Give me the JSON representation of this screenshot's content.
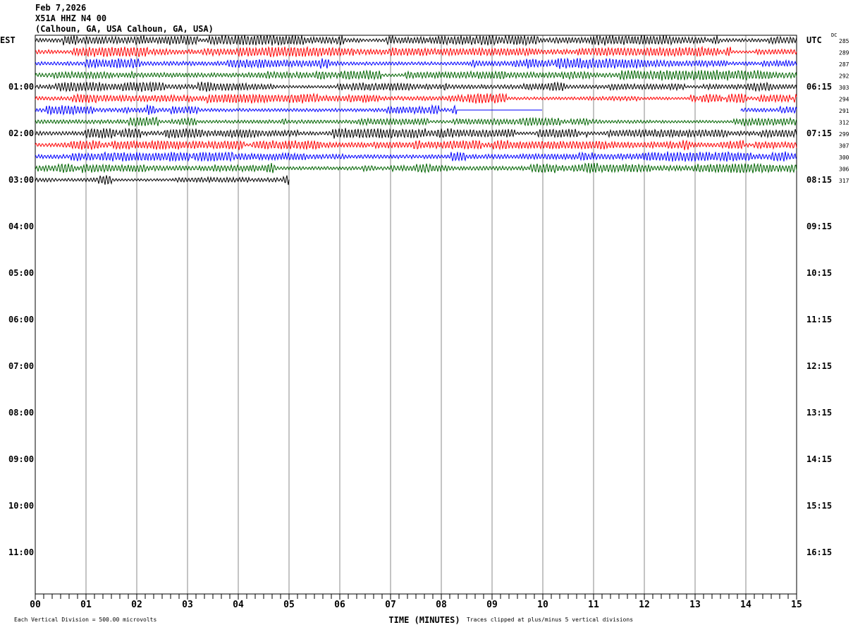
{
  "header": {
    "date": "Feb 7,2026",
    "station": "X51A HHZ N4 00",
    "location": "(Calhoun, GA, USA Calhoun, GA, USA)"
  },
  "chart_data": {
    "type": "line",
    "subtype": "helicorder",
    "left_zone_label": "EST",
    "right_zone_label": "UTC",
    "dc_label": "DC",
    "left_hour_labels": [
      "01:00",
      "02:00",
      "03:00",
      "04:00",
      "05:00",
      "06:00",
      "07:00",
      "08:00",
      "09:00",
      "10:00",
      "11:00"
    ],
    "right_hour_labels": [
      "06:15",
      "07:15",
      "08:15",
      "09:15",
      "10:15",
      "11:15",
      "12:15",
      "13:15",
      "14:15",
      "15:15",
      "16:15"
    ],
    "xlabel": "TIME (MINUTES)",
    "x_tick_labels": [
      "00",
      "01",
      "02",
      "03",
      "04",
      "05",
      "06",
      "07",
      "08",
      "09",
      "10",
      "11",
      "12",
      "13",
      "14",
      "15"
    ],
    "xlim": [
      0,
      15
    ],
    "rows_per_hour": 4,
    "hours_shown": 12,
    "trace_colors": [
      "#000000",
      "#ff0000",
      "#0000ff",
      "#006400"
    ],
    "dc_offsets": [
      "285",
      "289",
      "287",
      "292",
      "303",
      "294",
      "291",
      "312",
      "299",
      "307",
      "300",
      "306",
      "317"
    ],
    "last_row_end_minute": 5,
    "gaps": [
      {
        "row": 6,
        "flat_from_minute": 8.3,
        "flat_to_minute": 10,
        "no_data_to_minute": 13.9
      }
    ],
    "scale_note": "Each Vertical Division =  500.00 microvolts",
    "clip_note": "Traces clipped at plus/minus 5 vertical divisions",
    "grid": true
  }
}
